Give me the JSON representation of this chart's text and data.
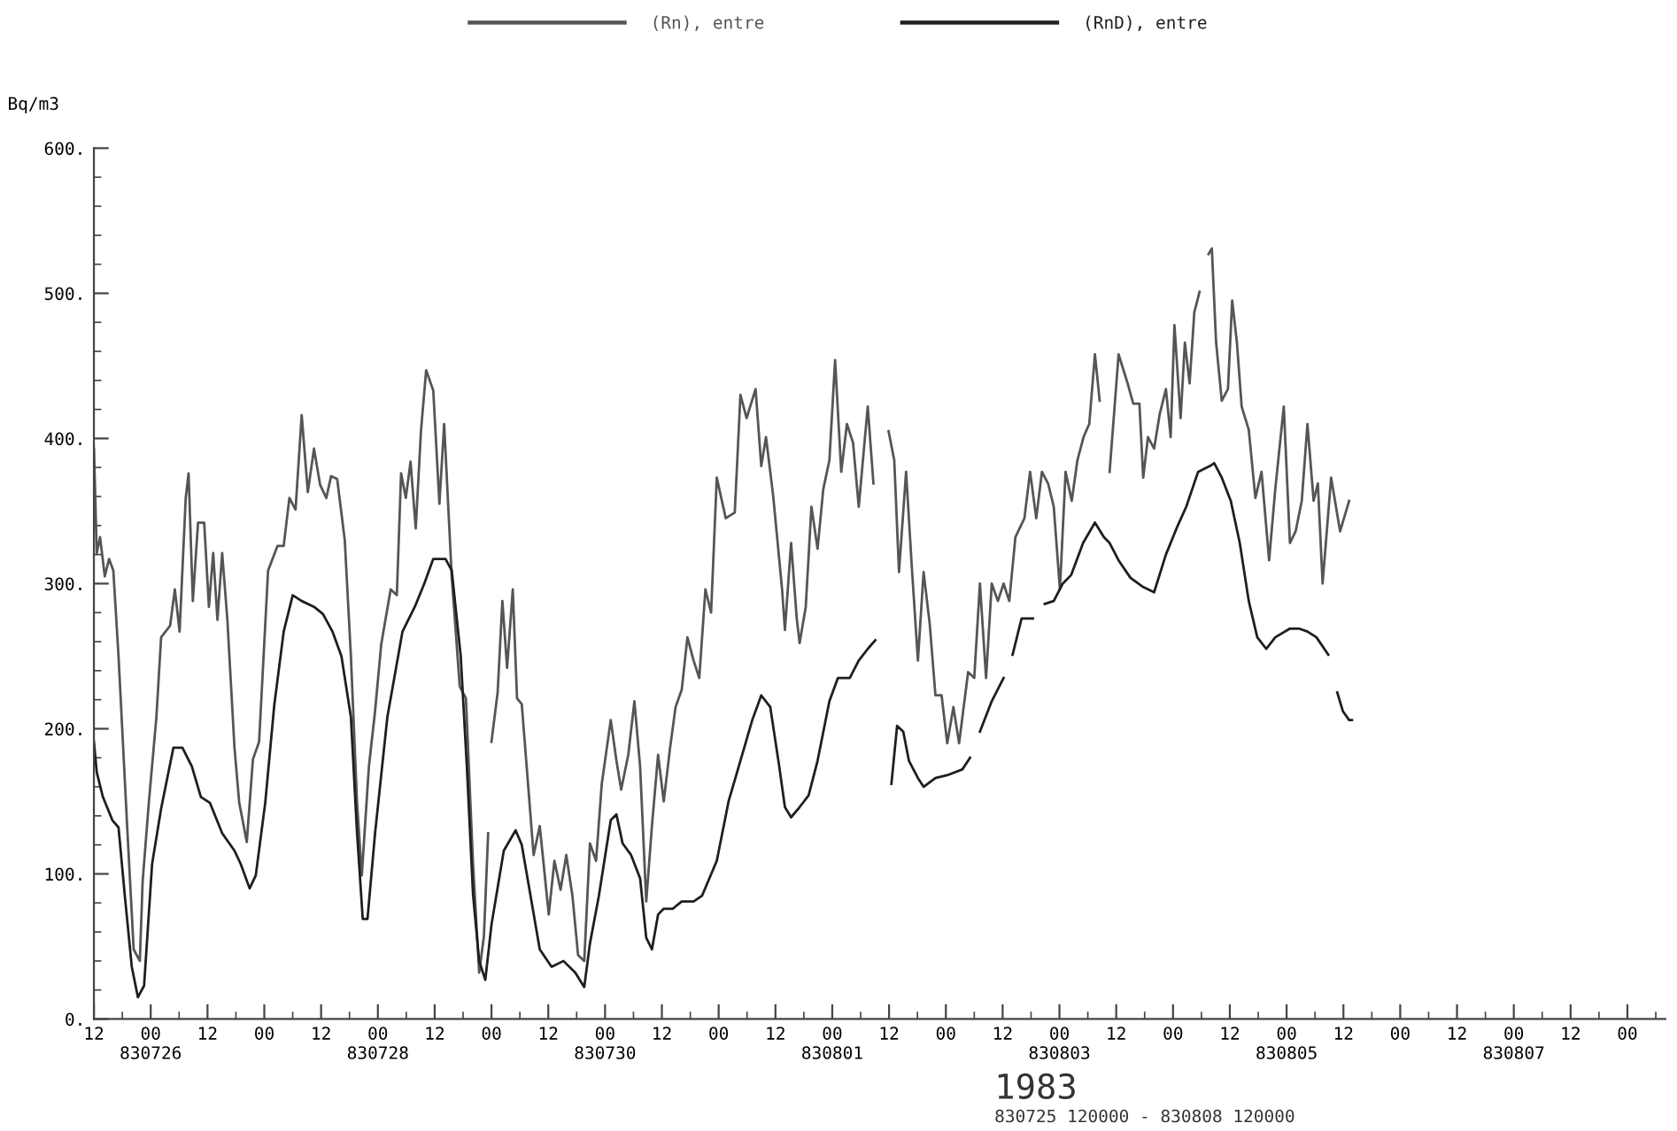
{
  "chart_data": {
    "type": "line",
    "ylabel": "Bq/m3",
    "annotations": [
      "1983",
      "830725 120000 - 830808 120000"
    ],
    "xlim": [
      "1983-07-25T12:00",
      "1983-08-08T08:00"
    ],
    "ylim": [
      0,
      600
    ],
    "xticks": [
      {
        "value": "1983-07-25T12:00",
        "label": "12"
      },
      {
        "value": "1983-07-25T18:00",
        "label": null
      },
      {
        "value": "1983-07-26T00:00",
        "label": "00\n830726"
      },
      {
        "value": "1983-07-26T06:00",
        "label": null
      },
      {
        "value": "1983-07-26T12:00",
        "label": "12"
      },
      {
        "value": "1983-07-26T18:00",
        "label": null
      },
      {
        "value": "1983-07-27T00:00",
        "label": "00"
      },
      {
        "value": "1983-07-27T06:00",
        "label": null
      },
      {
        "value": "1983-07-27T12:00",
        "label": "12"
      },
      {
        "value": "1983-07-27T18:00",
        "label": null
      },
      {
        "value": "1983-07-28T00:00",
        "label": "00\n830728"
      },
      {
        "value": "1983-07-28T06:00",
        "label": null
      },
      {
        "value": "1983-07-28T12:00",
        "label": "12"
      },
      {
        "value": "1983-07-28T18:00",
        "label": null
      },
      {
        "value": "1983-07-29T00:00",
        "label": "00"
      },
      {
        "value": "1983-07-29T06:00",
        "label": null
      },
      {
        "value": "1983-07-29T12:00",
        "label": "12"
      },
      {
        "value": "1983-07-29T18:00",
        "label": null
      },
      {
        "value": "1983-07-30T00:00",
        "label": "00\n830730"
      },
      {
        "value": "1983-07-30T06:00",
        "label": null
      },
      {
        "value": "1983-07-30T12:00",
        "label": "12"
      },
      {
        "value": "1983-07-30T18:00",
        "label": null
      },
      {
        "value": "1983-07-31T00:00",
        "label": "00"
      },
      {
        "value": "1983-07-31T06:00",
        "label": null
      },
      {
        "value": "1983-07-31T12:00",
        "label": "12"
      },
      {
        "value": "1983-07-31T18:00",
        "label": null
      },
      {
        "value": "1983-08-01T00:00",
        "label": "00\n830801"
      },
      {
        "value": "1983-08-01T06:00",
        "label": null
      },
      {
        "value": "1983-08-01T12:00",
        "label": "12"
      },
      {
        "value": "1983-08-01T18:00",
        "label": null
      },
      {
        "value": "1983-08-02T00:00",
        "label": "00"
      },
      {
        "value": "1983-08-02T06:00",
        "label": null
      },
      {
        "value": "1983-08-02T12:00",
        "label": "12"
      },
      {
        "value": "1983-08-02T18:00",
        "label": null
      },
      {
        "value": "1983-08-03T00:00",
        "label": "00\n830803"
      },
      {
        "value": "1983-08-03T06:00",
        "label": null
      },
      {
        "value": "1983-08-03T12:00",
        "label": "12"
      },
      {
        "value": "1983-08-03T18:00",
        "label": null
      },
      {
        "value": "1983-08-04T00:00",
        "label": "00"
      },
      {
        "value": "1983-08-04T06:00",
        "label": null
      },
      {
        "value": "1983-08-04T12:00",
        "label": "12"
      },
      {
        "value": "1983-08-04T18:00",
        "label": null
      },
      {
        "value": "1983-08-05T00:00",
        "label": "00\n830805"
      },
      {
        "value": "1983-08-05T06:00",
        "label": null
      },
      {
        "value": "1983-08-05T12:00",
        "label": "12"
      },
      {
        "value": "1983-08-05T18:00",
        "label": null
      },
      {
        "value": "1983-08-06T00:00",
        "label": "00"
      },
      {
        "value": "1983-08-06T06:00",
        "label": null
      },
      {
        "value": "1983-08-06T12:00",
        "label": "12"
      },
      {
        "value": "1983-08-06T18:00",
        "label": null
      },
      {
        "value": "1983-08-07T00:00",
        "label": "00\n830807"
      },
      {
        "value": "1983-08-07T06:00",
        "label": null
      },
      {
        "value": "1983-08-07T12:00",
        "label": "12"
      },
      {
        "value": "1983-08-07T18:00",
        "label": null
      },
      {
        "value": "1983-08-08T00:00",
        "label": "00"
      },
      {
        "value": "1983-08-08T06:00",
        "label": null
      }
    ],
    "yticks": [
      {
        "value": 0,
        "label": "0."
      },
      {
        "value": 20,
        "label": null
      },
      {
        "value": 40,
        "label": null
      },
      {
        "value": 60,
        "label": null
      },
      {
        "value": 80,
        "label": null
      },
      {
        "value": 100,
        "label": "100."
      },
      {
        "value": 120,
        "label": null
      },
      {
        "value": 140,
        "label": null
      },
      {
        "value": 160,
        "label": null
      },
      {
        "value": 180,
        "label": null
      },
      {
        "value": 200,
        "label": "200."
      },
      {
        "value": 220,
        "label": null
      },
      {
        "value": 240,
        "label": null
      },
      {
        "value": 260,
        "label": null
      },
      {
        "value": 280,
        "label": null
      },
      {
        "value": 300,
        "label": "300."
      },
      {
        "value": 320,
        "label": null
      },
      {
        "value": 340,
        "label": null
      },
      {
        "value": 360,
        "label": null
      },
      {
        "value": 380,
        "label": null
      },
      {
        "value": 400,
        "label": "400."
      },
      {
        "value": 420,
        "label": null
      },
      {
        "value": 440,
        "label": null
      },
      {
        "value": 460,
        "label": null
      },
      {
        "value": 480,
        "label": null
      },
      {
        "value": 500,
        "label": "500."
      },
      {
        "value": 520,
        "label": null
      },
      {
        "value": 540,
        "label": null
      },
      {
        "value": 560,
        "label": null
      },
      {
        "value": 580,
        "label": null
      },
      {
        "value": 600,
        "label": "600."
      }
    ],
    "grid": false,
    "legend": "top",
    "marker": "none",
    "line_style": "solid",
    "series": [
      {
        "name": "(Rn), entre",
        "color": "#555555",
        "x": [
          "1983-07-25T12:00",
          "1983-07-25T12:18",
          "1983-07-25T12:36",
          "1983-07-25T13:18",
          "1983-07-25T14:18",
          "1983-07-25T15:12",
          "1983-07-25T16:06",
          "1983-07-25T17:12",
          "1983-07-25T19:06",
          "1983-07-25T20:24",
          "1983-07-25T21:42",
          "1983-07-25T22:18",
          "1983-07-25T23:36",
          "1983-07-26T01:12",
          "1983-07-26T02:12",
          "1983-07-26T04:06",
          "1983-07-26T05:06",
          "1983-07-26T06:06",
          "1983-07-26T07:24",
          "1983-07-26T08:00",
          "1983-07-26T08:54",
          "1983-07-26T10:00",
          "1983-07-26T11:18",
          "1983-07-26T12:18",
          "1983-07-26T13:12",
          "1983-07-26T14:06",
          "1983-07-26T15:06",
          "1983-07-26T16:12",
          "1983-07-26T17:42",
          "1983-07-26T18:42",
          "1983-07-26T20:18",
          "1983-07-26T21:36",
          "1983-07-26T22:54",
          "1983-07-27T00:48",
          "1983-07-27T02:48",
          "1983-07-27T04:06",
          "1983-07-27T05:18",
          "1983-07-27T06:36",
          "1983-07-27T07:54",
          "1983-07-27T09:12",
          "1983-07-27T10:30",
          "1983-07-27T11:48",
          "1983-07-27T13:06",
          "1983-07-27T14:06",
          "1983-07-27T15:24",
          "1983-07-27T17:00",
          "1983-07-27T18:18",
          "1983-07-27T19:36",
          "1983-07-27T20:36",
          "1983-07-27T22:06",
          "1983-07-27T23:24",
          "1983-07-28T00:42",
          "1983-07-28T02:42",
          "1983-07-28T04:00",
          "1983-07-28T04:54",
          "1983-07-28T05:54",
          "1983-07-28T06:54",
          "1983-07-28T08:00",
          "1983-07-28T09:06",
          "1983-07-28T10:12",
          "1983-07-28T11:42",
          "1983-07-28T13:00",
          "1983-07-28T14:00",
          "1983-07-28T15:36",
          "1983-07-28T17:18",
          "1983-07-28T18:36",
          "1983-07-28T20:06",
          "1983-07-28T21:24",
          "1983-07-28T22:24",
          "1983-07-28T23:18",
          "1983-07-28T23:42",
          "1983-07-29T00:00",
          "1983-07-29T01:18",
          "1983-07-29T02:18",
          "1983-07-29T03:18",
          "1983-07-29T04:30",
          "1983-07-29T05:24",
          "1983-07-29T06:24",
          "1983-07-29T08:54",
          "1983-07-29T10:12",
          "1983-07-29T12:06",
          "1983-07-29T13:18",
          "1983-07-29T14:36",
          "1983-07-29T15:48",
          "1983-07-29T17:06",
          "1983-07-29T18:18",
          "1983-07-29T19:36",
          "1983-07-29T20:48",
          "1983-07-29T22:06",
          "1983-07-29T23:18",
          "1983-07-30T01:12",
          "1983-07-30T02:24",
          "1983-07-30T03:24",
          "1983-07-30T04:54",
          "1983-07-30T06:12",
          "1983-07-30T07:24",
          "1983-07-30T08:42",
          "1983-07-30T09:54",
          "1983-07-30T11:12",
          "1983-07-30T12:24",
          "1983-07-30T13:42",
          "1983-07-30T14:54",
          "1983-07-30T16:12",
          "1983-07-30T17:24",
          "1983-07-30T18:42",
          "1983-07-30T19:54",
          "1983-07-30T21:12",
          "1983-07-30T22:24",
          "1983-07-30T23:36",
          "1983-07-31T01:30",
          "1983-07-31T03:24",
          "1983-07-31T04:36",
          "1983-07-31T05:54",
          "1983-07-31T07:48",
          "1983-07-31T09:00",
          "1983-07-31T10:00",
          "1983-07-31T11:30",
          "1983-07-31T13:24",
          "1983-07-31T14:00",
          "1983-07-31T15:18",
          "1983-07-31T16:30",
          "1983-07-31T17:06",
          "1983-07-31T18:24",
          "1983-07-31T19:36",
          "1983-07-31T20:54",
          "1983-07-31T22:06",
          "1983-07-31T23:24",
          "1983-08-01T00:36",
          "1983-08-01T01:54",
          "1983-08-01T03:06",
          "1983-08-01T04:24",
          "1983-08-01T05:36",
          "1983-08-01T07:30",
          "1983-08-01T08:42",
          "1983-08-01T10:18",
          "1983-08-01T11:54",
          "1983-08-01T13:06",
          "1983-08-01T14:06",
          "1983-08-01T15:36",
          "1983-08-01T16:48",
          "1983-08-01T18:06",
          "1983-08-01T19:18",
          "1983-08-01T20:36",
          "1983-08-01T21:48",
          "1983-08-01T23:06",
          "1983-08-02T00:18",
          "1983-08-02T01:36",
          "1983-08-02T02:48",
          "1983-08-02T04:42",
          "1983-08-02T06:00",
          "1983-08-02T07:12",
          "1983-08-02T08:30",
          "1983-08-02T09:42",
          "1983-08-02T11:00",
          "1983-08-02T12:12",
          "1983-08-02T13:24",
          "1983-08-02T14:42",
          "1983-08-02T16:36",
          "1983-08-02T17:48",
          "1983-08-02T19:06",
          "1983-08-02T20:18",
          "1983-08-02T21:36",
          "1983-08-02T22:48",
          "1983-08-03T00:06",
          "1983-08-03T01:18",
          "1983-08-03T02:36",
          "1983-08-03T03:48",
          "1983-08-03T05:06",
          "1983-08-03T06:18",
          "1983-08-03T07:30",
          "1983-08-03T08:30",
          "1983-08-03T09:30",
          "1983-08-03T10:36",
          "1983-08-03T12:30",
          "1983-08-03T14:24",
          "1983-08-03T15:36",
          "1983-08-03T16:54",
          "1983-08-03T17:42",
          "1983-08-03T18:42",
          "1983-08-03T20:00",
          "1983-08-03T21:12",
          "1983-08-03T22:30",
          "1983-08-03T23:30",
          "1983-08-04T00:18",
          "1983-08-04T01:36",
          "1983-08-04T02:30",
          "1983-08-04T03:30",
          "1983-08-04T04:30",
          "1983-08-04T05:36",
          "1983-08-04T06:30",
          "1983-08-04T07:30",
          "1983-08-04T08:12",
          "1983-08-04T09:06",
          "1983-08-04T10:18",
          "1983-08-04T11:36",
          "1983-08-04T12:30",
          "1983-08-04T13:30",
          "1983-08-04T14:30",
          "1983-08-04T16:00",
          "1983-08-04T17:24",
          "1983-08-04T18:42",
          "1983-08-04T20:18",
          "1983-08-04T21:36",
          "1983-08-04T23:24",
          "1983-08-05T00:42",
          "1983-08-05T01:54",
          "1983-08-05T03:12",
          "1983-08-05T04:24",
          "1983-08-05T05:42",
          "1983-08-05T06:36",
          "1983-08-05T07:36",
          "1983-08-05T09:24",
          "1983-08-05T11:18",
          "1983-08-05T13:12"
        ],
        "values": [
          393,
          359,
          321,
          332,
          305,
          317,
          309,
          250,
          128,
          48,
          40,
          95,
          149,
          208,
          263,
          271,
          296,
          267,
          359,
          376,
          288,
          342,
          342,
          284,
          321,
          275,
          321,
          275,
          187,
          149,
          122,
          179,
          191,
          309,
          326,
          326,
          359,
          351,
          416,
          363,
          393,
          368,
          359,
          374,
          372,
          330,
          250,
          149,
          99,
          174,
          212,
          258,
          296,
          292,
          376,
          359,
          384,
          338,
          405,
          447,
          433,
          355,
          410,
          305,
          229,
          221,
          107,
          32,
          57,
          128,
          null,
          191,
          225,
          288,
          242,
          296,
          221,
          217,
          113,
          133,
          72,
          109,
          89,
          113,
          85,
          44,
          40,
          121,
          109,
          162,
          206,
          178,
          158,
          182,
          219,
          174,
          81,
          133,
          182,
          150,
          186,
          215,
          227,
          263,
          247,
          235,
          296,
          280,
          373,
          345,
          349,
          430,
          414,
          434,
          381,
          401,
          361,
          296,
          268,
          328,
          276,
          259,
          284,
          353,
          324,
          365,
          385,
          454,
          377,
          410,
          397,
          353,
          422,
          369,
          null,
          405,
          385,
          308,
          377,
          312,
          247,
          308,
          272,
          223,
          223,
          190,
          215,
          190,
          239,
          235,
          300,
          235,
          300,
          288,
          300,
          288,
          332,
          345,
          377,
          345,
          377,
          369,
          353,
          296,
          377,
          357,
          385,
          401,
          410,
          458,
          426,
          null,
          377,
          458,
          438,
          424,
          424,
          373,
          401,
          393,
          417,
          434,
          401,
          478,
          414,
          466,
          438,
          487,
          501,
          null,
          527,
          531,
          466,
          426,
          434,
          495,
          466,
          422,
          406,
          359,
          377,
          316,
          365,
          422,
          328,
          336,
          357,
          410,
          357,
          369,
          300,
          373,
          336,
          357
        ]
      },
      {
        "name": "(RnD), entre",
        "color": "#1e1e1e",
        "x": [
          "1983-07-25T12:00",
          "1983-07-25T12:36",
          "1983-07-25T13:54",
          "1983-07-25T15:54",
          "1983-07-25T17:12",
          "1983-07-25T18:30",
          "1983-07-25T20:00",
          "1983-07-25T21:18",
          "1983-07-25T22:36",
          "1983-07-26T00:18",
          "1983-07-26T02:12",
          "1983-07-26T04:48",
          "1983-07-26T06:42",
          "1983-07-26T08:42",
          "1983-07-26T10:36",
          "1983-07-26T12:30",
          "1983-07-26T15:06",
          "1983-07-26T17:42",
          "1983-07-26T19:00",
          "1983-07-26T20:54",
          "1983-07-26T22:12",
          "1983-07-27T00:12",
          "1983-07-27T02:06",
          "1983-07-27T04:06",
          "1983-07-27T06:00",
          "1983-07-27T07:54",
          "1983-07-27T10:30",
          "1983-07-27T12:24",
          "1983-07-27T14:24",
          "1983-07-27T16:18",
          "1983-07-27T18:18",
          "1983-07-27T19:36",
          "1983-07-27T20:48",
          "1983-07-27T21:48",
          "1983-07-27T23:24",
          "1983-07-28T02:00",
          "1983-07-28T05:12",
          "1983-07-28T07:48",
          "1983-07-28T09:48",
          "1983-07-28T11:42",
          "1983-07-28T14:18",
          "1983-07-28T15:36",
          "1983-07-28T17:30",
          "1983-07-28T18:48",
          "1983-07-28T20:06",
          "1983-07-28T21:24",
          "1983-07-28T22:42",
          "1983-07-29T00:00",
          "1983-07-29T02:36",
          "1983-07-29T05:06",
          "1983-07-29T06:24",
          "1983-07-29T10:12",
          "1983-07-29T12:42",
          "1983-07-29T15:12",
          "1983-07-29T17:42",
          "1983-07-29T19:36",
          "1983-07-29T20:48",
          "1983-07-29T22:42",
          "1983-07-30T01:12",
          "1983-07-30T02:24",
          "1983-07-30T03:42",
          "1983-07-30T05:30",
          "1983-07-30T07:24",
          "1983-07-30T08:42",
          "1983-07-30T09:54",
          "1983-07-30T11:12",
          "1983-07-30T12:24",
          "1983-07-30T14:18",
          "1983-07-30T16:12",
          "1983-07-30T18:42",
          "1983-07-30T20:30",
          "1983-07-30T23:36",
          "1983-07-31T02:06",
          "1983-07-31T04:36",
          "1983-07-31T07:06",
          "1983-07-31T09:00",
          "1983-07-31T10:54",
          "1983-07-31T12:48",
          "1983-07-31T14:00",
          "1983-07-31T15:18",
          "1983-07-31T17:06",
          "1983-07-31T19:00",
          "1983-07-31T20:54",
          "1983-07-31T23:24",
          "1983-08-01T01:12",
          "1983-08-01T03:42",
          "1983-08-01T05:36",
          "1983-08-01T07:30",
          "1983-08-01T09:06",
          "1983-08-01T10:48",
          "1983-08-01T12:30",
          "1983-08-01T13:42",
          "1983-08-01T15:00",
          "1983-08-01T16:12",
          "1983-08-01T18:06",
          "1983-08-01T19:18",
          "1983-08-01T21:48",
          "1983-08-02T00:18",
          "1983-08-02T03:30",
          "1983-08-02T05:06",
          "1983-08-02T06:06",
          "1983-08-02T07:12",
          "1983-08-02T09:42",
          "1983-08-02T12:12",
          "1983-08-02T13:06",
          "1983-08-02T14:06",
          "1983-08-02T16:00",
          "1983-08-02T18:24",
          "1983-08-02T19:36",
          "1983-08-02T20:54",
          "1983-08-02T22:48",
          "1983-08-03T00:42",
          "1983-08-03T02:30",
          "1983-08-03T05:00",
          "1983-08-03T07:30",
          "1983-08-03T09:24",
          "1983-08-03T10:36",
          "1983-08-03T12:30",
          "1983-08-03T15:00",
          "1983-08-03T17:30",
          "1983-08-03T20:00",
          "1983-08-03T22:30",
          "1983-08-04T01:00",
          "1983-08-04T02:48",
          "1983-08-04T05:18",
          "1983-08-04T07:48",
          "1983-08-04T08:42",
          "1983-08-04T10:18",
          "1983-08-04T12:12",
          "1983-08-04T14:06",
          "1983-08-04T16:00",
          "1983-08-04T17:48",
          "1983-08-04T19:42",
          "1983-08-04T21:36",
          "1983-08-05T00:42",
          "1983-08-05T02:36",
          "1983-08-05T04:24",
          "1983-08-05T06:18",
          "1983-08-05T08:48",
          "1983-08-05T09:42",
          "1983-08-05T10:42",
          "1983-08-05T11:54",
          "1983-08-05T13:12",
          "1983-08-05T13:48"
        ],
        "values": [
          191,
          170,
          153,
          137,
          132,
          86,
          36,
          15,
          23,
          107,
          145,
          187,
          187,
          174,
          153,
          149,
          128,
          116,
          107,
          90,
          99,
          149,
          216,
          267,
          292,
          288,
          284,
          279,
          267,
          250,
          208,
          128,
          69,
          69,
          128,
          208,
          267,
          284,
          300,
          317,
          317,
          309,
          250,
          174,
          86,
          40,
          27,
          65,
          116,
          130,
          120,
          48,
          36,
          40,
          32,
          22,
          52,
          85,
          137,
          141,
          121,
          113,
          97,
          56,
          48,
          72,
          76,
          76,
          81,
          81,
          85,
          109,
          150,
          178,
          206,
          223,
          215,
          174,
          146,
          139,
          146,
          154,
          178,
          219,
          235,
          235,
          247,
          255,
          261,
          null,
          162,
          202,
          198,
          178,
          166,
          160,
          166,
          168,
          172,
          180,
          null,
          198,
          219,
          235,
          null,
          251,
          276,
          276,
          null,
          286,
          288,
          300,
          306,
          328,
          342,
          332,
          328,
          316,
          304,
          298,
          294,
          320,
          340,
          353,
          377,
          381,
          383,
          373,
          357,
          328,
          288,
          263,
          255,
          263,
          269,
          269,
          267,
          263,
          251,
          null,
          225,
          212,
          206,
          206
        ]
      }
    ]
  }
}
